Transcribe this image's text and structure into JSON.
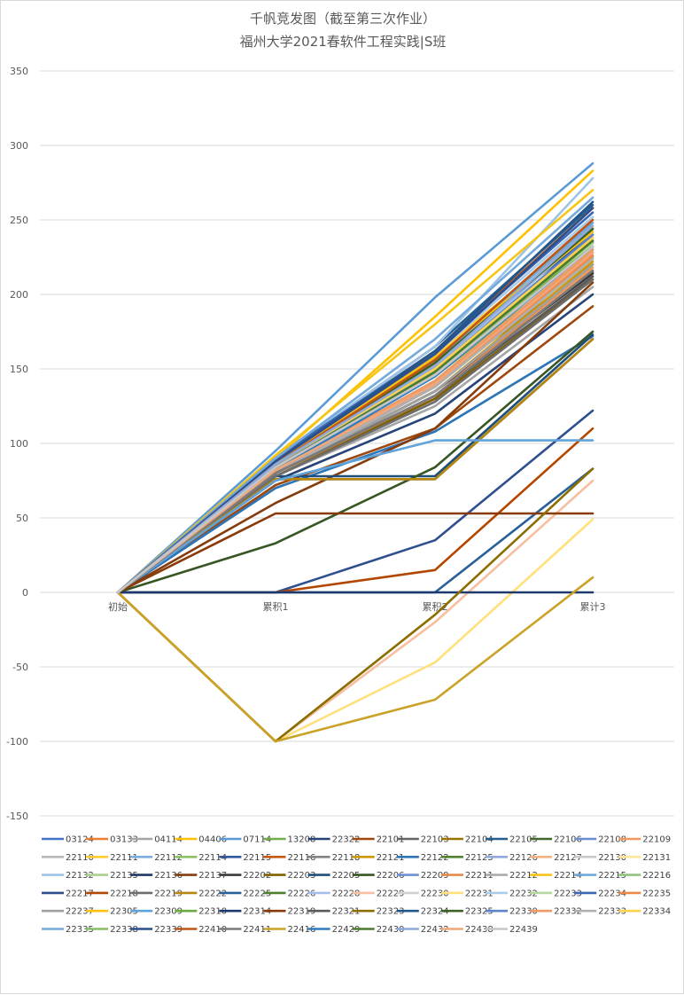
{
  "chart_data": {
    "type": "line",
    "title": "千帆竞发图（截至第三次作业）",
    "subtitle": "福州大学2021春软件工程实践|S班",
    "categories": [
      "初始",
      "累积1",
      "累积2",
      "累计3"
    ],
    "ylim": [
      -150,
      350
    ],
    "yticks": [
      -150,
      -100,
      -50,
      0,
      50,
      100,
      150,
      200,
      250,
      300,
      350
    ],
    "grid": true,
    "legend_position": "bottom",
    "series": [
      {
        "name": "03124",
        "color": "#4472C4",
        "values": [
          0,
          80,
          140,
          230
        ]
      },
      {
        "name": "03133",
        "color": "#ED7D31",
        "values": [
          0,
          85,
          150,
          235
        ]
      },
      {
        "name": "04114",
        "color": "#A5A5A5",
        "values": [
          0,
          78,
          125,
          205
        ]
      },
      {
        "name": "04406",
        "color": "#FFC000",
        "values": [
          0,
          90,
          185,
          283
        ]
      },
      {
        "name": "07114",
        "color": "#5B9BD5",
        "values": [
          0,
          95,
          198,
          288
        ]
      },
      {
        "name": "13208",
        "color": "#70AD47",
        "values": [
          0,
          88,
          145,
          228
        ]
      },
      {
        "name": "22322",
        "color": "#264478",
        "values": [
          0,
          75,
          120,
          200
        ]
      },
      {
        "name": "22101",
        "color": "#9E480E",
        "values": [
          0,
          72,
          110,
          192
        ]
      },
      {
        "name": "22103",
        "color": "#636363",
        "values": [
          0,
          80,
          135,
          215
        ]
      },
      {
        "name": "22104",
        "color": "#997300",
        "values": [
          0,
          82,
          140,
          220
        ]
      },
      {
        "name": "22105",
        "color": "#255E91",
        "values": [
          0,
          90,
          165,
          260
        ]
      },
      {
        "name": "22106",
        "color": "#43682B",
        "values": [
          0,
          86,
          150,
          240
        ]
      },
      {
        "name": "22108",
        "color": "#698ED0",
        "values": [
          0,
          84,
          145,
          232
        ]
      },
      {
        "name": "22109",
        "color": "#F1975A",
        "values": [
          0,
          80,
          130,
          218
        ]
      },
      {
        "name": "22110",
        "color": "#B7B7B7",
        "values": [
          0,
          86,
          155,
          250
        ]
      },
      {
        "name": "22111",
        "color": "#FFCD33",
        "values": [
          0,
          88,
          160,
          245
        ]
      },
      {
        "name": "22112",
        "color": "#7CAFDD",
        "values": [
          0,
          85,
          150,
          238
        ]
      },
      {
        "name": "22114",
        "color": "#8CC168",
        "values": [
          0,
          82,
          140,
          225
        ]
      },
      {
        "name": "22115",
        "color": "#335AA1",
        "values": [
          0,
          88,
          158,
          240
        ]
      },
      {
        "name": "22116",
        "color": "#C55A11",
        "values": [
          0,
          90,
          162,
          258
        ]
      },
      {
        "name": "22118",
        "color": "#848484",
        "values": [
          0,
          78,
          128,
          212
        ]
      },
      {
        "name": "22121",
        "color": "#CC9A00",
        "values": [
          0,
          80,
          135,
          222
        ]
      },
      {
        "name": "22122",
        "color": "#2E75B6",
        "values": [
          0,
          70,
          108,
          172
        ]
      },
      {
        "name": "22125",
        "color": "#548235",
        "values": [
          0,
          84,
          148,
          236
        ]
      },
      {
        "name": "22126",
        "color": "#8FAADC",
        "values": [
          0,
          82,
          142,
          230
        ]
      },
      {
        "name": "22127",
        "color": "#F4B183",
        "values": [
          0,
          80,
          138,
          224
        ]
      },
      {
        "name": "22130",
        "color": "#C9C9C9",
        "values": [
          0,
          85,
          150,
          235
        ]
      },
      {
        "name": "22131",
        "color": "#FFE699",
        "values": [
          0,
          82,
          140,
          228
        ]
      },
      {
        "name": "22132",
        "color": "#9DC3E6",
        "values": [
          0,
          90,
          165,
          278
        ]
      },
      {
        "name": "22135",
        "color": "#A9D18E",
        "values": [
          0,
          84,
          148,
          240
        ]
      },
      {
        "name": "22136",
        "color": "#1F3864",
        "values": [
          0,
          76,
          76,
          170
        ]
      },
      {
        "name": "22137",
        "color": "#843C0C",
        "values": [
          0,
          60,
          110,
          208
        ]
      },
      {
        "name": "22202",
        "color": "#3A3A3A",
        "values": [
          0,
          80,
          135,
          214
        ]
      },
      {
        "name": "22203",
        "color": "#7F6000",
        "values": [
          0,
          78,
          130,
          210
        ]
      },
      {
        "name": "22205",
        "color": "#1F4E79",
        "values": [
          0,
          78,
          78,
          173
        ]
      },
      {
        "name": "22206",
        "color": "#375623",
        "values": [
          0,
          33,
          84,
          175
        ]
      },
      {
        "name": "22209",
        "color": "#6F8FCF",
        "values": [
          0,
          85,
          148,
          235
        ]
      },
      {
        "name": "22211",
        "color": "#E68A4C",
        "values": [
          0,
          80,
          132,
          220
        ]
      },
      {
        "name": "22212",
        "color": "#ABABAB",
        "values": [
          0,
          82,
          138,
          226
        ]
      },
      {
        "name": "22214",
        "color": "#F5C518",
        "values": [
          0,
          92,
          180,
          270
        ]
      },
      {
        "name": "22215",
        "color": "#6FA8DC",
        "values": [
          0,
          86,
          155,
          248
        ]
      },
      {
        "name": "22216",
        "color": "#93C47D",
        "values": [
          0,
          84,
          150,
          238
        ]
      },
      {
        "name": "22217",
        "color": "#2F4F8F",
        "values": [
          0,
          0,
          35,
          122
        ]
      },
      {
        "name": "22218",
        "color": "#B34700",
        "values": [
          0,
          0,
          15,
          110
        ]
      },
      {
        "name": "22219",
        "color": "#6D6D6D",
        "values": [
          0,
          78,
          128,
          210
        ]
      },
      {
        "name": "22222",
        "color": "#B8860B",
        "values": [
          0,
          76,
          76,
          170
        ]
      },
      {
        "name": "22225",
        "color": "#2A6099",
        "values": [
          0,
          0,
          0,
          83
        ]
      },
      {
        "name": "22226",
        "color": "#4F7F2F",
        "values": [
          0,
          82,
          142,
          228
        ]
      },
      {
        "name": "22228",
        "color": "#A4BDEA",
        "values": [
          0,
          85,
          150,
          244
        ]
      },
      {
        "name": "22229",
        "color": "#F7BFA0",
        "values": [
          0,
          -100,
          -20,
          75
        ]
      },
      {
        "name": "22230",
        "color": "#D0D0D0",
        "values": [
          0,
          84,
          150,
          236
        ]
      },
      {
        "name": "22231",
        "color": "#FFE07A",
        "values": [
          0,
          -100,
          -47,
          49
        ]
      },
      {
        "name": "22232",
        "color": "#A9CCEA",
        "values": [
          0,
          88,
          160,
          252
        ]
      },
      {
        "name": "22233",
        "color": "#B5D99C",
        "values": [
          0,
          84,
          148,
          234
        ]
      },
      {
        "name": "22234",
        "color": "#3C67B5",
        "values": [
          0,
          90,
          162,
          255
        ]
      },
      {
        "name": "22235",
        "color": "#EE8A48",
        "values": [
          0,
          82,
          140,
          226
        ]
      },
      {
        "name": "22237",
        "color": "#A0A0A0",
        "values": [
          0,
          80,
          135,
          220
        ]
      },
      {
        "name": "22305",
        "color": "#FFC20E",
        "values": [
          0,
          86,
          158,
          242
        ]
      },
      {
        "name": "22309",
        "color": "#5FA3DA",
        "values": [
          0,
          75,
          102,
          102
        ]
      },
      {
        "name": "22310",
        "color": "#6AAA3E",
        "values": [
          0,
          85,
          150,
          232
        ]
      },
      {
        "name": "22314",
        "color": "#1C3A6E",
        "values": [
          0,
          0,
          0,
          0
        ]
      },
      {
        "name": "22319",
        "color": "#8A3B0B",
        "values": [
          0,
          53,
          53,
          53
        ]
      },
      {
        "name": "22321",
        "color": "#5A5A5A",
        "values": [
          0,
          80,
          132,
          212
        ]
      },
      {
        "name": "22323",
        "color": "#8C6D00",
        "values": [
          0,
          -100,
          -15,
          83
        ]
      },
      {
        "name": "22324",
        "color": "#22568A",
        "values": [
          0,
          88,
          162,
          262
        ]
      },
      {
        "name": "22325",
        "color": "#3E6125",
        "values": [
          0,
          86,
          154,
          244
        ]
      },
      {
        "name": "22330",
        "color": "#5E84CC",
        "values": [
          0,
          84,
          150,
          240
        ]
      },
      {
        "name": "22332",
        "color": "#F29A63",
        "values": [
          0,
          82,
          142,
          230
        ]
      },
      {
        "name": "22333",
        "color": "#B0B0B0",
        "values": [
          0,
          80,
          138,
          224
        ]
      },
      {
        "name": "22334",
        "color": "#FFD24D",
        "values": [
          0,
          86,
          150,
          238
        ]
      },
      {
        "name": "22335",
        "color": "#73A9DB",
        "values": [
          0,
          90,
          170,
          265
        ]
      },
      {
        "name": "22338",
        "color": "#86BE63",
        "values": [
          0,
          84,
          145,
          236
        ]
      },
      {
        "name": "22339",
        "color": "#2C4E8C",
        "values": [
          0,
          88,
          160,
          258
        ]
      },
      {
        "name": "22410",
        "color": "#BF5512",
        "values": [
          0,
          86,
          156,
          250
        ]
      },
      {
        "name": "22411",
        "color": "#7A7A7A",
        "values": [
          0,
          80,
          132,
          216
        ]
      },
      {
        "name": "22416",
        "color": "#C9A227",
        "values": [
          0,
          -100,
          -72,
          10
        ]
      },
      {
        "name": "22429",
        "color": "#2F7BC0",
        "values": [
          0,
          82,
          145,
          232
        ]
      },
      {
        "name": "22430",
        "color": "#4C7A2E",
        "values": [
          0,
          84,
          148,
          236
        ]
      },
      {
        "name": "22432",
        "color": "#8EA9DB",
        "values": [
          0,
          86,
          152,
          246
        ]
      },
      {
        "name": "22438",
        "color": "#F2A679",
        "values": [
          0,
          82,
          140,
          228
        ]
      },
      {
        "name": "22439",
        "color": "#C6C6C6",
        "values": [
          0,
          84,
          146,
          232
        ]
      }
    ]
  }
}
